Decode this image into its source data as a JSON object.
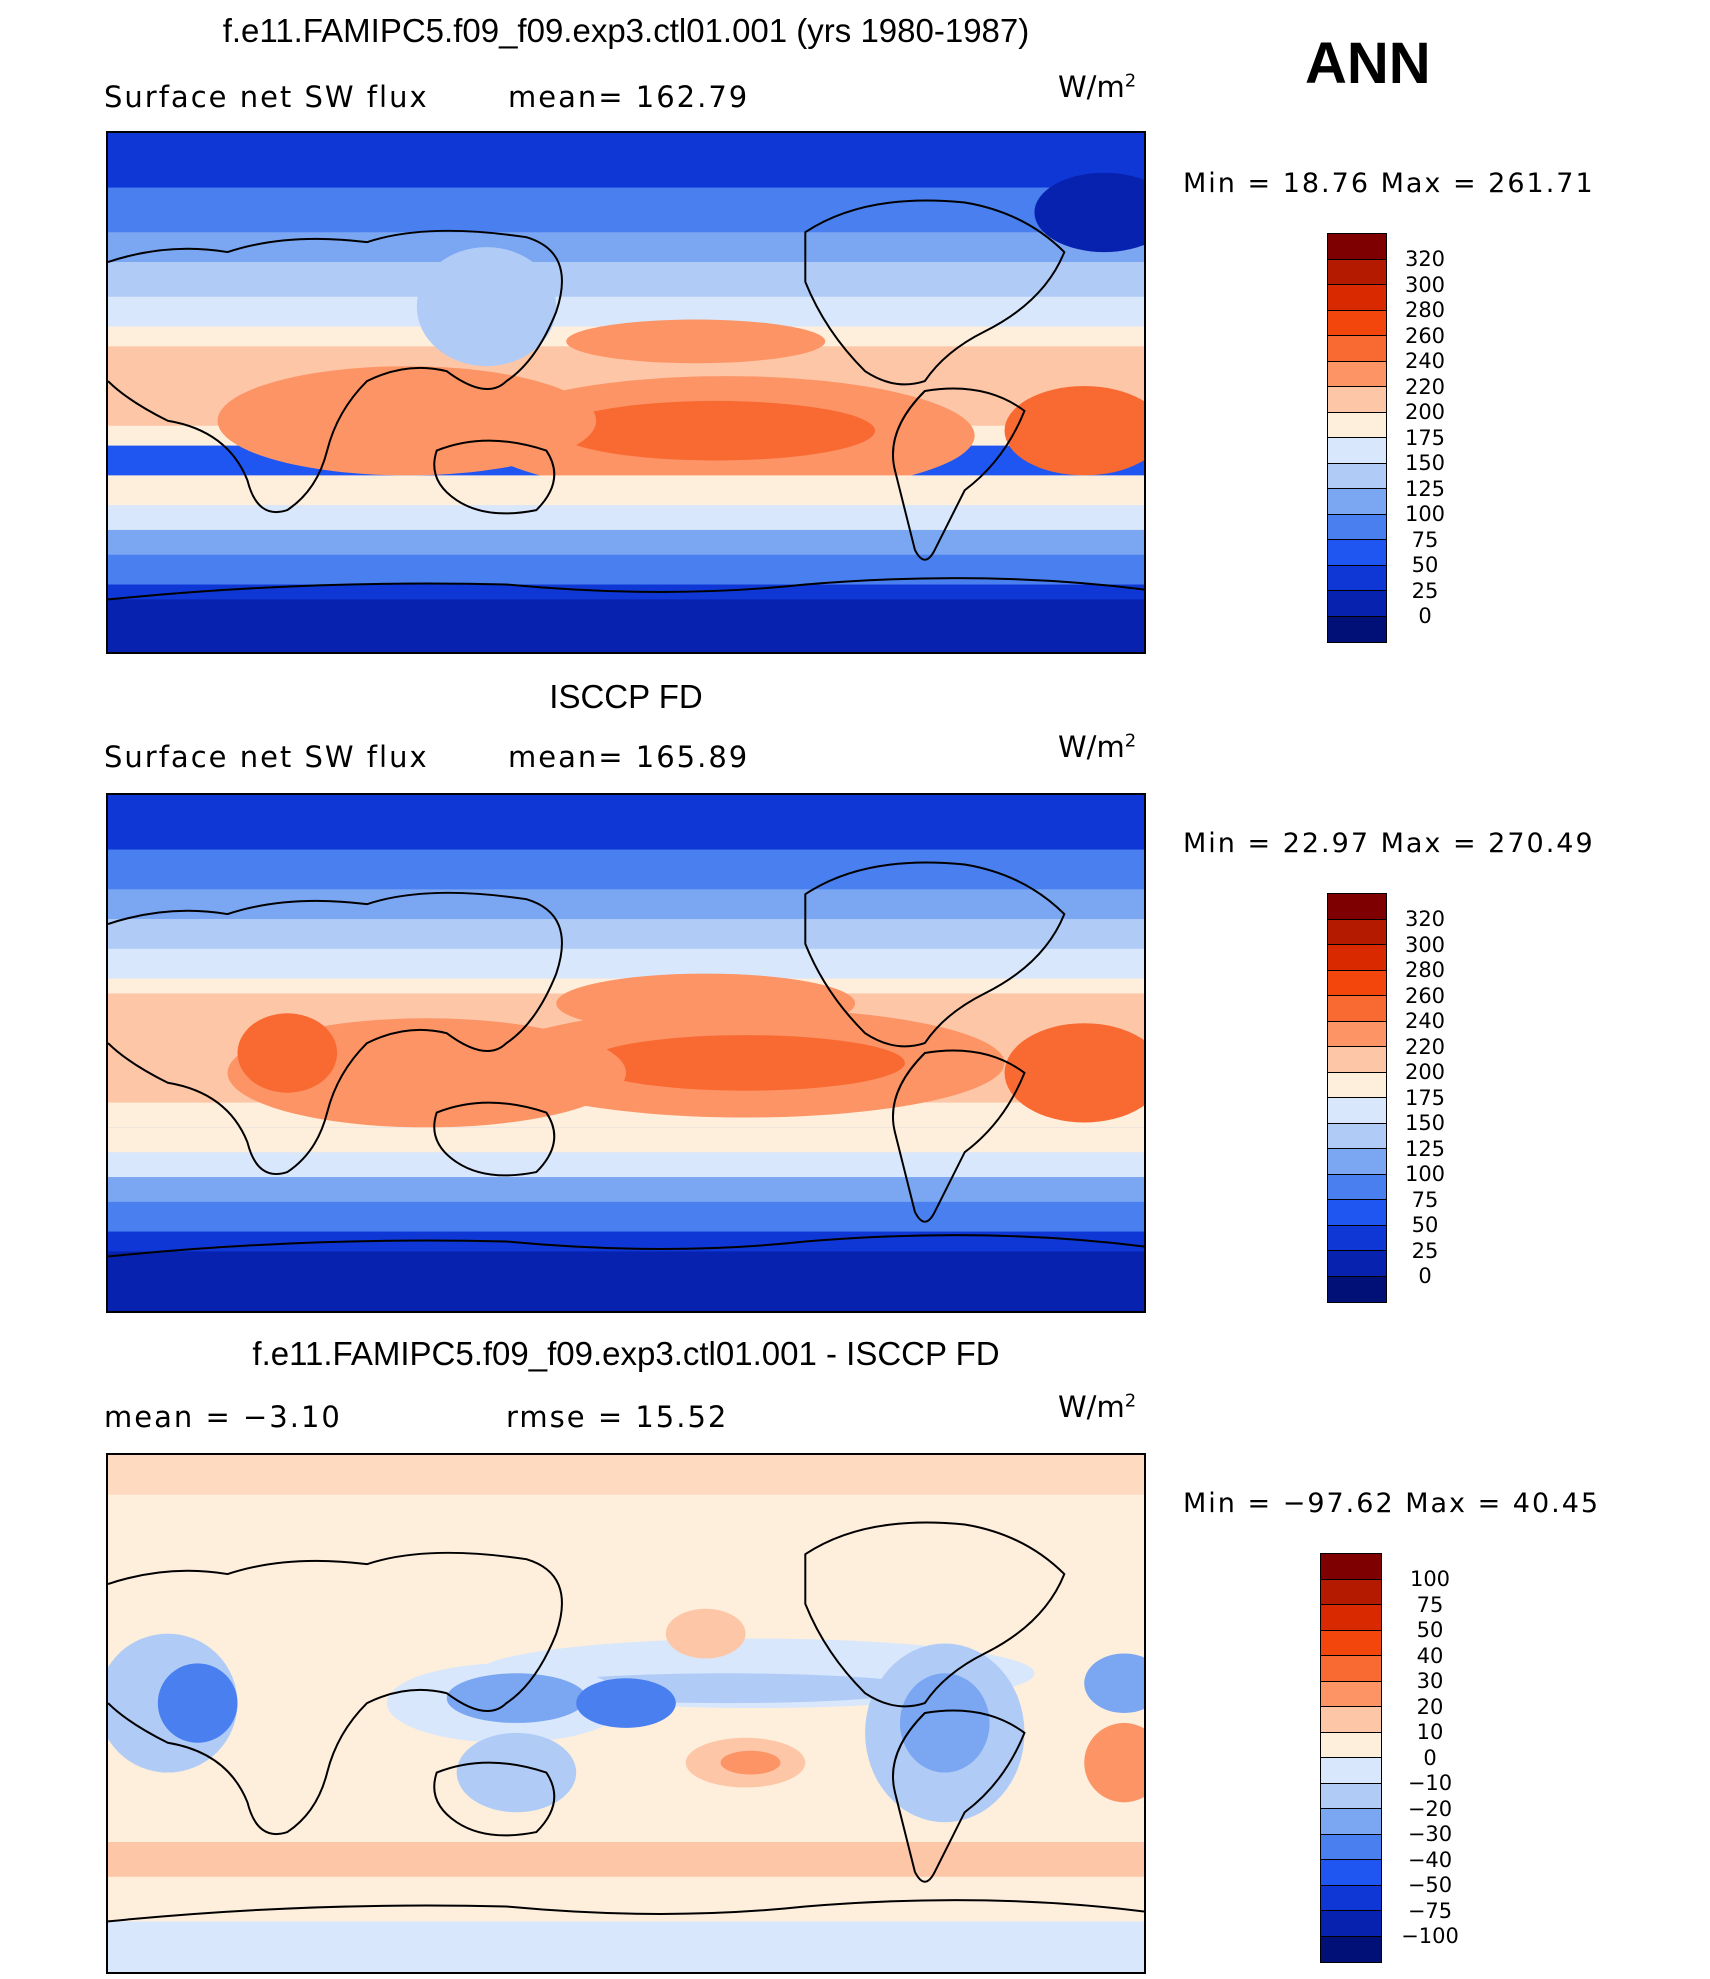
{
  "season": "ANN",
  "panels": [
    {
      "title": "f.e11.FAMIPC5.f09_f09.exp3.ctl01.001 (yrs 1980-1987)",
      "left_text": "Surface net SW flux",
      "mid_text": "mean= 162.79",
      "units_base": "W/m",
      "units_sup": "2",
      "minmax": "Min =   18.76 Max = 261.71",
      "colorbar_levels": [
        "320",
        "300",
        "280",
        "260",
        "240",
        "220",
        "200",
        "175",
        "150",
        "125",
        "100",
        "75",
        "50",
        "25",
        "0"
      ],
      "colors": [
        "#7f0000",
        "#b31a00",
        "#d92900",
        "#f2460d",
        "#f96a33",
        "#fc9466",
        "#fdc6a6",
        "#feeedc",
        "#d8e7fb",
        "#b0ccf6",
        "#7aa6f2",
        "#4a7ff0",
        "#1f55f0",
        "#0e37d6",
        "#0822b0",
        "#001076"
      ]
    },
    {
      "title": "ISCCP FD",
      "left_text": "Surface net SW flux",
      "mid_text": "mean= 165.89",
      "units_base": "W/m",
      "units_sup": "2",
      "minmax": "Min =   22.97 Max = 270.49",
      "colorbar_levels": [
        "320",
        "300",
        "280",
        "260",
        "240",
        "220",
        "200",
        "175",
        "150",
        "125",
        "100",
        "75",
        "50",
        "25",
        "0"
      ],
      "colors": [
        "#7f0000",
        "#b31a00",
        "#d92900",
        "#f2460d",
        "#f96a33",
        "#fc9466",
        "#fdc6a6",
        "#feeedc",
        "#d8e7fb",
        "#b0ccf6",
        "#7aa6f2",
        "#4a7ff0",
        "#1f55f0",
        "#0e37d6",
        "#0822b0",
        "#001076"
      ]
    },
    {
      "title": "f.e11.FAMIPC5.f09_f09.exp3.ctl01.001 - ISCCP FD",
      "left_text": "mean =   −3.10",
      "mid_text": "rmse =   15.52",
      "units_base": "W/m",
      "units_sup": "2",
      "minmax": "Min = −97.62 Max =   40.45",
      "colorbar_levels": [
        "100",
        "75",
        "50",
        "40",
        "30",
        "20",
        "10",
        "0",
        "−10",
        "−20",
        "−30",
        "−40",
        "−50",
        "−75",
        "−100"
      ],
      "colors": [
        "#7f0000",
        "#b31a00",
        "#d92900",
        "#f2460d",
        "#f96a33",
        "#fc9466",
        "#fdc6a6",
        "#feeedc",
        "#d8e7fb",
        "#b0ccf6",
        "#7aa6f2",
        "#4a7ff0",
        "#1f55f0",
        "#0e37d6",
        "#0822b0",
        "#001076"
      ]
    }
  ]
}
